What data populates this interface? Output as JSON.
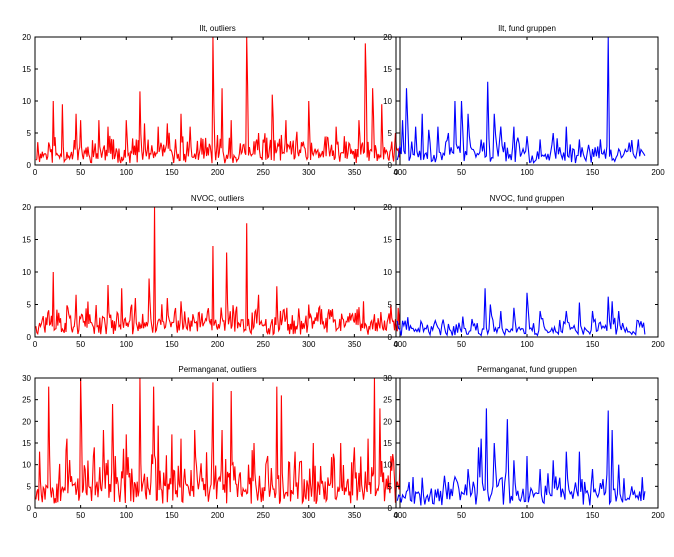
{
  "colors": {
    "outliers": "#ff0000",
    "groups": "#0000ff",
    "axis": "#000000",
    "background": "#ffffff"
  },
  "chart_data": [
    {
      "type": "line",
      "title": "Ilt, outliers",
      "color": "#ff0000",
      "xlim": [
        0,
        400
      ],
      "ylim": [
        0,
        20
      ],
      "xticks": [
        0,
        50,
        100,
        150,
        200,
        250,
        300,
        350,
        400
      ],
      "yticks": [
        0,
        5,
        10,
        15,
        20
      ],
      "n": 400,
      "seed": 11,
      "baseline": 1.3,
      "noise": 1.5,
      "peaks": [
        [
          20,
          10
        ],
        [
          30,
          9.5
        ],
        [
          45,
          8
        ],
        [
          50,
          7
        ],
        [
          70,
          7
        ],
        [
          80,
          6
        ],
        [
          100,
          7
        ],
        [
          115,
          11.5
        ],
        [
          120,
          6.5
        ],
        [
          135,
          6
        ],
        [
          145,
          6.5
        ],
        [
          160,
          8
        ],
        [
          170,
          6
        ],
        [
          195,
          22
        ],
        [
          205,
          12
        ],
        [
          215,
          7
        ],
        [
          232,
          20
        ],
        [
          245,
          5
        ],
        [
          260,
          11
        ],
        [
          275,
          7
        ],
        [
          300,
          10
        ],
        [
          330,
          6
        ],
        [
          355,
          7
        ],
        [
          362,
          19
        ],
        [
          370,
          12
        ],
        [
          380,
          9.5
        ],
        [
          395,
          5
        ]
      ]
    },
    {
      "type": "line",
      "title": "Ilt, fund gruppen",
      "color": "#0000ff",
      "xlim": [
        0,
        200
      ],
      "ylim": [
        0,
        20
      ],
      "xticks": [
        0,
        50,
        100,
        150,
        200
      ],
      "yticks": [
        0,
        5,
        10,
        15,
        20
      ],
      "n": 190,
      "seed": 23,
      "baseline": 1.2,
      "noise": 1.3,
      "peaks": [
        [
          5,
          7
        ],
        [
          8,
          12
        ],
        [
          15,
          6
        ],
        [
          20,
          8
        ],
        [
          25,
          5.5
        ],
        [
          32,
          6
        ],
        [
          40,
          5
        ],
        [
          45,
          10
        ],
        [
          50,
          10
        ],
        [
          55,
          8
        ],
        [
          70,
          13
        ],
        [
          75,
          8
        ],
        [
          80,
          6
        ],
        [
          90,
          6
        ],
        [
          100,
          4.5
        ],
        [
          110,
          4
        ],
        [
          120,
          5
        ],
        [
          130,
          6
        ],
        [
          140,
          4
        ],
        [
          150,
          2.5
        ],
        [
          162,
          21
        ],
        [
          170,
          2.5
        ],
        [
          178,
          3.5
        ],
        [
          185,
          4
        ]
      ]
    },
    {
      "type": "line",
      "title": "NVOC, outliers",
      "color": "#ff0000",
      "xlim": [
        0,
        400
      ],
      "ylim": [
        0,
        20
      ],
      "xticks": [
        0,
        50,
        100,
        150,
        200,
        250,
        300,
        350,
        400
      ],
      "yticks": [
        0,
        5,
        10,
        15,
        20
      ],
      "n": 400,
      "seed": 37,
      "baseline": 1.6,
      "noise": 1.4,
      "peaks": [
        [
          20,
          10
        ],
        [
          45,
          6.5
        ],
        [
          80,
          8
        ],
        [
          95,
          7.5
        ],
        [
          110,
          6
        ],
        [
          125,
          9
        ],
        [
          131,
          20
        ],
        [
          145,
          6
        ],
        [
          160,
          5.5
        ],
        [
          195,
          14
        ],
        [
          210,
          13
        ],
        [
          232,
          17.5
        ],
        [
          245,
          6.5
        ],
        [
          265,
          7.8
        ],
        [
          300,
          5
        ],
        [
          360,
          5.5
        ],
        [
          390,
          5
        ]
      ]
    },
    {
      "type": "line",
      "title": "NVOC, fund gruppen",
      "color": "#0000ff",
      "xlim": [
        0,
        200
      ],
      "ylim": [
        0,
        20
      ],
      "xticks": [
        0,
        50,
        100,
        150,
        200
      ],
      "yticks": [
        0,
        5,
        10,
        15,
        20
      ],
      "n": 190,
      "seed": 41,
      "baseline": 0.9,
      "noise": 0.9,
      "peaks": [
        [
          5,
          2.5
        ],
        [
          20,
          2
        ],
        [
          40,
          2
        ],
        [
          60,
          2
        ],
        [
          68,
          7.5
        ],
        [
          72,
          5
        ],
        [
          80,
          4
        ],
        [
          90,
          4.5
        ],
        [
          100,
          6.8
        ],
        [
          110,
          4
        ],
        [
          130,
          4
        ],
        [
          140,
          5.3
        ],
        [
          150,
          4
        ],
        [
          162,
          6.2
        ],
        [
          165,
          5.5
        ],
        [
          170,
          4
        ],
        [
          185,
          2.5
        ]
      ]
    },
    {
      "type": "line",
      "title": "Permanganat, outliers",
      "color": "#ff0000",
      "xlim": [
        0,
        400
      ],
      "ylim": [
        0,
        30
      ],
      "xticks": [
        0,
        50,
        100,
        150,
        200,
        250,
        300,
        350,
        400
      ],
      "yticks": [
        0,
        5,
        10,
        15,
        20,
        25,
        30
      ],
      "n": 400,
      "seed": 53,
      "baseline": 3.5,
      "noise": 4.5,
      "peaks": [
        [
          5,
          13
        ],
        [
          15,
          28
        ],
        [
          35,
          16
        ],
        [
          50,
          30
        ],
        [
          65,
          14
        ],
        [
          75,
          18
        ],
        [
          85,
          24
        ],
        [
          100,
          17
        ],
        [
          115,
          30
        ],
        [
          130,
          28
        ],
        [
          135,
          19
        ],
        [
          150,
          17
        ],
        [
          160,
          16
        ],
        [
          175,
          18
        ],
        [
          195,
          29
        ],
        [
          205,
          18
        ],
        [
          215,
          27
        ],
        [
          240,
          15
        ],
        [
          255,
          12
        ],
        [
          265,
          28
        ],
        [
          270,
          26
        ],
        [
          285,
          13
        ],
        [
          305,
          15
        ],
        [
          335,
          15
        ],
        [
          350,
          14
        ],
        [
          365,
          16
        ],
        [
          372,
          30
        ],
        [
          378,
          23
        ],
        [
          390,
          12
        ]
      ]
    },
    {
      "type": "line",
      "title": "Permanganat, fund gruppen",
      "color": "#0000ff",
      "xlim": [
        0,
        200
      ],
      "ylim": [
        0,
        30
      ],
      "xticks": [
        0,
        50,
        100,
        150,
        200
      ],
      "yticks": [
        0,
        5,
        10,
        15,
        20,
        25,
        30
      ],
      "n": 190,
      "seed": 67,
      "baseline": 2.5,
      "noise": 2.5,
      "peaks": [
        [
          10,
          6
        ],
        [
          20,
          7
        ],
        [
          40,
          6
        ],
        [
          55,
          9
        ],
        [
          63,
          14
        ],
        [
          65,
          16
        ],
        [
          69,
          23
        ],
        [
          75,
          15
        ],
        [
          85,
          20.5
        ],
        [
          90,
          11
        ],
        [
          100,
          12
        ],
        [
          110,
          9
        ],
        [
          120,
          11
        ],
        [
          125,
          7
        ],
        [
          130,
          13
        ],
        [
          140,
          13
        ],
        [
          150,
          9
        ],
        [
          162,
          22.5
        ],
        [
          165,
          18
        ],
        [
          170,
          10
        ],
        [
          180,
          5
        ]
      ]
    }
  ]
}
